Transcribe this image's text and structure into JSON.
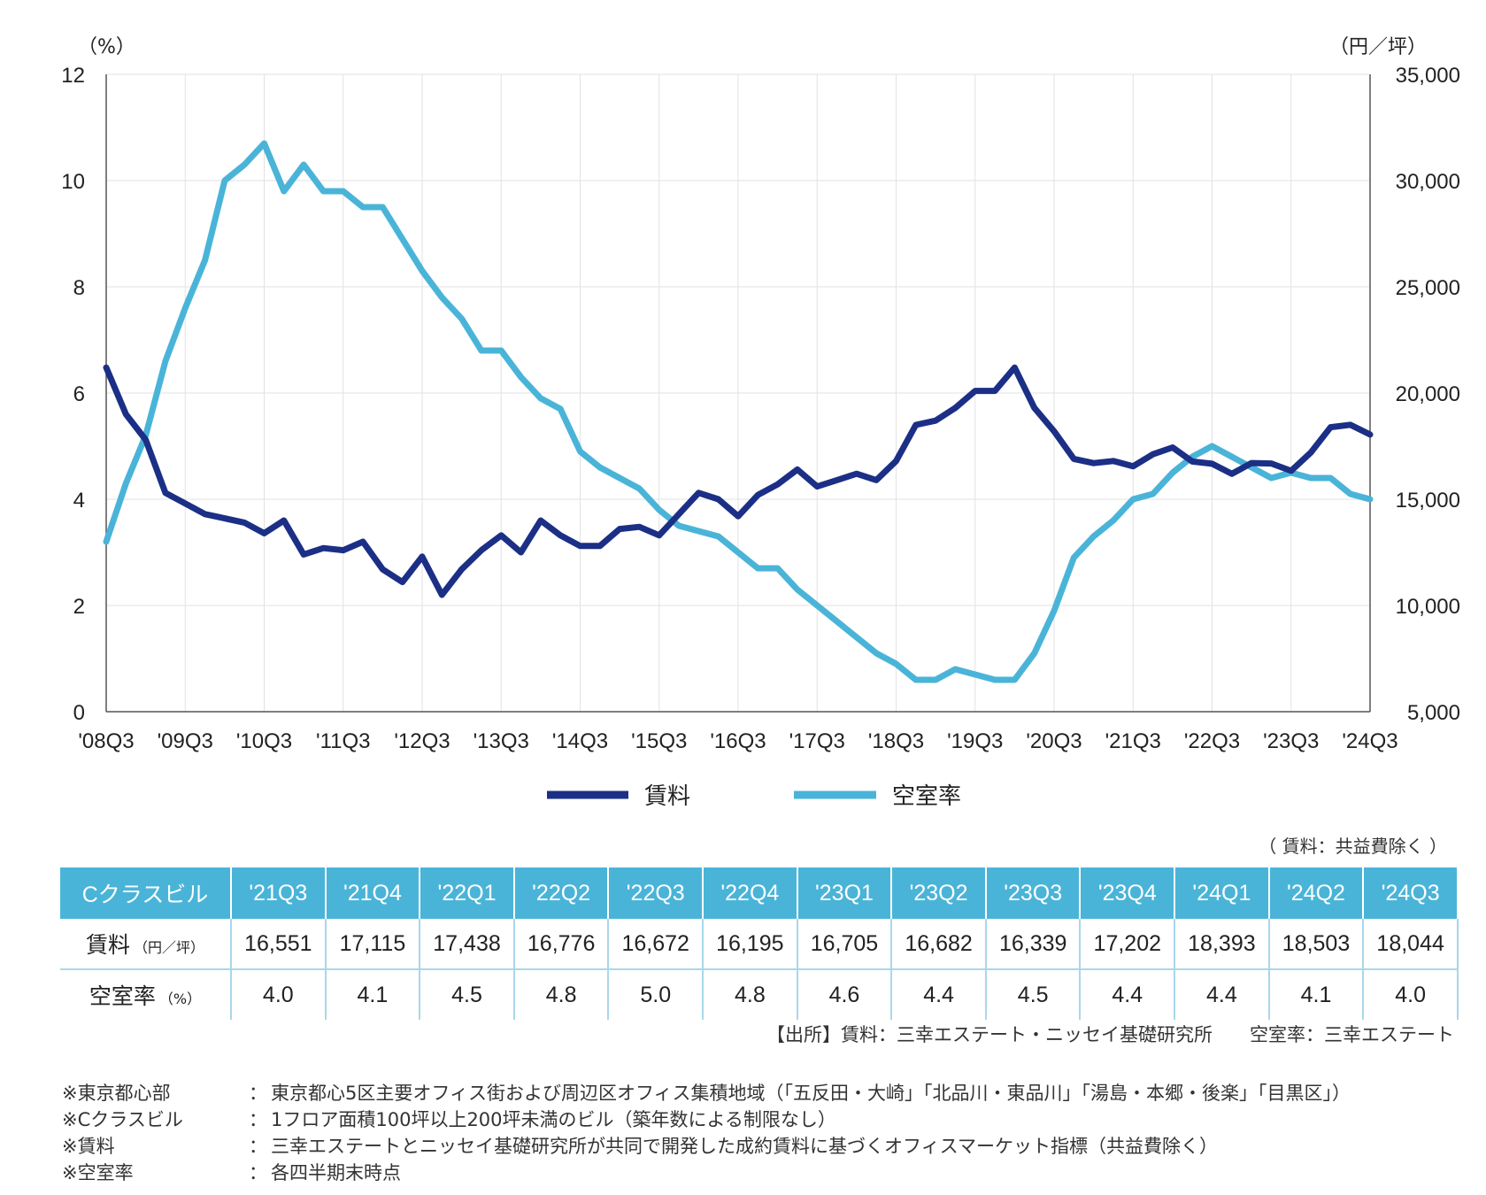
{
  "chart_data": {
    "type": "line",
    "left_unit": "（%）",
    "right_unit": "（円／坪）",
    "y_left": {
      "min": 0,
      "max": 12,
      "ticks": [
        "0",
        "2",
        "4",
        "6",
        "8",
        "10",
        "12"
      ]
    },
    "y_right": {
      "min": 5000,
      "max": 35000,
      "ticks": [
        "5,000",
        "10,000",
        "15,000",
        "20,000",
        "25,000",
        "30,000",
        "35,000"
      ]
    },
    "x_tick_labels": [
      "'08Q3",
      "'09Q3",
      "'10Q3",
      "'11Q3",
      "'12Q3",
      "'13Q3",
      "'14Q3",
      "'15Q3",
      "'16Q3",
      "'17Q3",
      "'18Q3",
      "'19Q3",
      "'20Q3",
      "'21Q3",
      "'22Q3",
      "'23Q3",
      "'24Q3"
    ],
    "series": [
      {
        "name": "賃料",
        "axis": "right",
        "color": "#1c2f86",
        "values": [
          21200,
          19000,
          17800,
          15300,
          14800,
          14300,
          14100,
          13900,
          13400,
          14000,
          12400,
          12700,
          12600,
          13000,
          11700,
          11100,
          12300,
          10500,
          11700,
          12600,
          13300,
          12500,
          14000,
          13300,
          12800,
          12800,
          13600,
          13700,
          13300,
          14300,
          15300,
          15000,
          14200,
          15200,
          15700,
          16400,
          15600,
          15900,
          16200,
          15900,
          16800,
          18500,
          18700,
          19300,
          20100,
          20100,
          21200,
          19300,
          18200,
          16900,
          16700,
          16800,
          16551,
          17115,
          17438,
          16776,
          16672,
          16195,
          16705,
          16682,
          16339,
          17202,
          18393,
          18503,
          18044
        ]
      },
      {
        "name": "空室率",
        "axis": "left",
        "color": "#4ab4d8",
        "values": [
          3.2,
          4.3,
          5.2,
          6.6,
          7.6,
          8.5,
          10.0,
          10.3,
          10.7,
          9.8,
          10.3,
          9.8,
          9.8,
          9.5,
          9.5,
          8.9,
          8.3,
          7.8,
          7.4,
          6.8,
          6.8,
          6.3,
          5.9,
          5.7,
          4.9,
          4.6,
          4.4,
          4.2,
          3.8,
          3.5,
          3.4,
          3.3,
          3.0,
          2.7,
          2.7,
          2.3,
          2.0,
          1.7,
          1.4,
          1.1,
          0.9,
          0.6,
          0.6,
          0.8,
          0.7,
          0.6,
          0.6,
          1.1,
          1.9,
          2.9,
          3.3,
          3.6,
          4.0,
          4.1,
          4.5,
          4.8,
          5.0,
          4.8,
          4.6,
          4.4,
          4.5,
          4.4,
          4.4,
          4.1,
          4.0
        ]
      }
    ]
  },
  "legend": [
    {
      "label": "賃料",
      "color": "#1c2f86"
    },
    {
      "label": "空室率",
      "color": "#4ab4d8"
    }
  ],
  "table": {
    "note": "（ 賃料：共益費除く ）",
    "header_label": "Cクラスビル",
    "columns": [
      "'21Q3",
      "'21Q4",
      "'22Q1",
      "'22Q2",
      "'22Q3",
      "'22Q4",
      "'23Q1",
      "'23Q2",
      "'23Q3",
      "'23Q4",
      "'24Q1",
      "'24Q2",
      "'24Q3"
    ],
    "rent_label": "賃料",
    "rent_unit": "（円／坪）",
    "rent_values": [
      "16,551",
      "17,115",
      "17,438",
      "16,776",
      "16,672",
      "16,195",
      "16,705",
      "16,682",
      "16,339",
      "17,202",
      "18,393",
      "18,503",
      "18,044"
    ],
    "vacancy_label": "空室率",
    "vacancy_unit": "（%）",
    "vacancy_values": [
      "4.0",
      "4.1",
      "4.5",
      "4.8",
      "5.0",
      "4.8",
      "4.6",
      "4.4",
      "4.5",
      "4.4",
      "4.4",
      "4.1",
      "4.0"
    ]
  },
  "source": "【出所】賃料：三幸エステート・ニッセイ基礎研究所　　空室率：三幸エステート",
  "notes": [
    {
      "label": "※東京都心部",
      "text": "東京都心5区主要オフィス街および周辺区オフィス集積地域（「五反田・大崎」「北品川・東品川」「湯島・本郷・後楽」「目黒区」）"
    },
    {
      "label": "※Cクラスビル",
      "text": "1フロア面積100坪以上200坪未満のビル（築年数による制限なし）"
    },
    {
      "label": "※賃料",
      "text": "三幸エステートとニッセイ基礎研究所が共同で開発した成約賃料に基づくオフィスマーケット指標（共益費除く）"
    },
    {
      "label": "※空室率",
      "text": "各四半期末時点"
    }
  ]
}
